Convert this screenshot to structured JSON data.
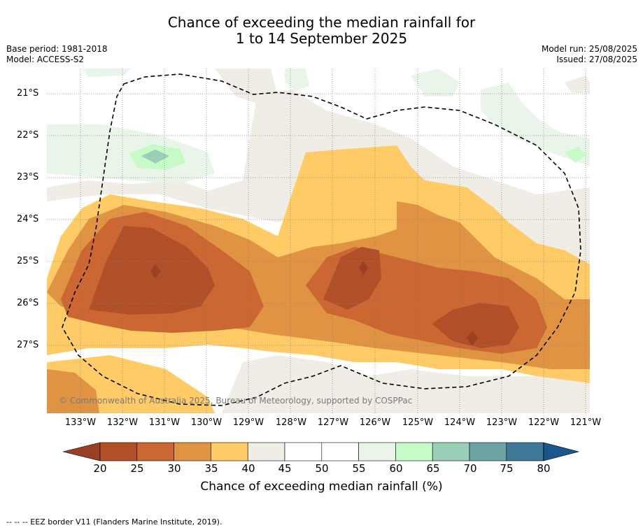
{
  "title": {
    "line1": "Chance of exceeding the median rainfall for",
    "line2": "1 to 14 September 2025"
  },
  "meta": {
    "base_period": "Base period: 1981-2018",
    "model": "Model: ACCESS-S2",
    "model_run": "Model run: 25/08/2025",
    "issued": "Issued: 27/08/2025"
  },
  "copyright": "© Commonwealth of Australia 2025, Bureau of Meteorology, supported by COSPPac",
  "footnote": "--  --  -- EEZ border V11 (Flanders Marine Institute, 2019).",
  "lat_labels": [
    "21°S",
    "22°S",
    "23°S",
    "24°S",
    "25°S",
    "26°S",
    "27°S"
  ],
  "lon_labels": [
    "133°W",
    "132°W",
    "131°W",
    "130°W",
    "129°W",
    "128°W",
    "127°W",
    "126°W",
    "125°W",
    "124°W",
    "123°W",
    "122°W",
    "121°W"
  ],
  "colorbar": {
    "label": "Chance of exceeding median rainfall (%)",
    "ticks": [
      "20",
      "25",
      "30",
      "35",
      "40",
      "45",
      "50",
      "55",
      "60",
      "65",
      "70",
      "75",
      "80"
    ],
    "colors": [
      "#9a4025",
      "#b04f28",
      "#cc6633",
      "#e09443",
      "#fecb66",
      "#f0ece6",
      "#ffffff",
      "#ffffff",
      "#eaf5ea",
      "#c6fac6",
      "#99ceb7",
      "#6ca3a5",
      "#3f7896",
      "#1a568d"
    ]
  },
  "map_colors": {
    "ocean": "#ffffff",
    "c20_25": "#b04f28",
    "c25_30": "#cc6633",
    "c30_35": "#e09443",
    "c35_40": "#fecb66",
    "c40_45": "#f0ece6",
    "c55_60": "#eaf5ea",
    "c60_65": "#c6fac6",
    "c65_70": "#99ceb7",
    "c_lt20": "#9a4025"
  }
}
